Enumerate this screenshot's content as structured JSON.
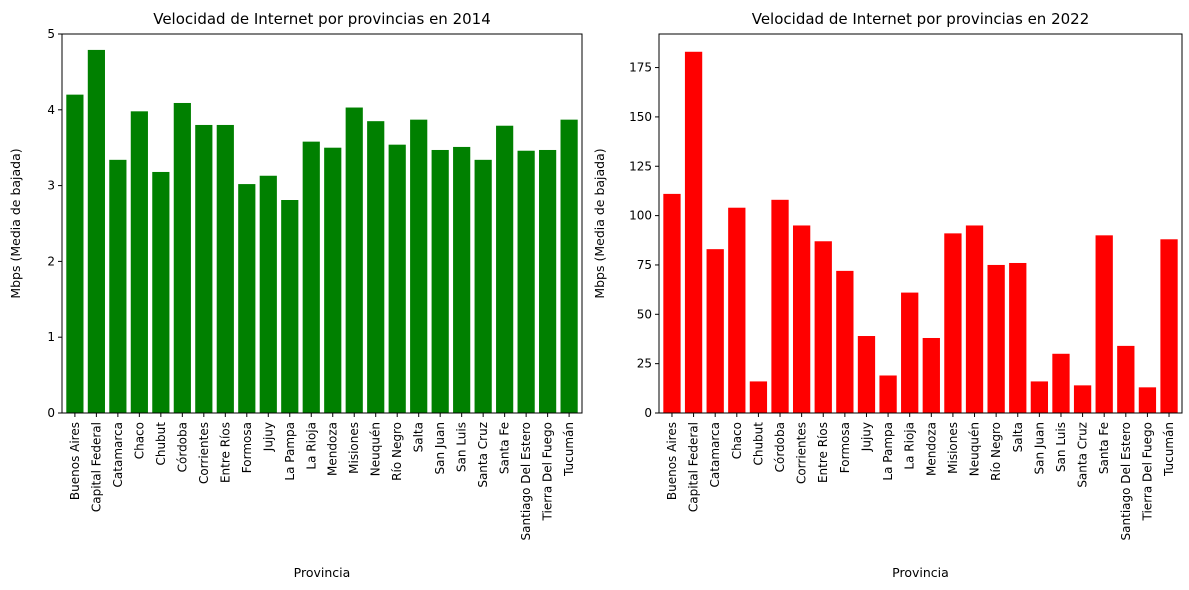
{
  "chart_data": [
    {
      "type": "bar",
      "title": "Velocidad de Internet por provincias en 2014",
      "xlabel": "Provincia",
      "ylabel": "Mbps (Media de bajada)",
      "ylim": [
        0,
        5
      ],
      "yticks": [
        0,
        1,
        2,
        3,
        4,
        5
      ],
      "color": "#008000",
      "grid": false,
      "categories": [
        "Buenos Aires",
        "Capital Federal",
        "Catamarca",
        "Chaco",
        "Chubut",
        "Córdoba",
        "Corrientes",
        "Entre Ríos",
        "Formosa",
        "Jujuy",
        "La Pampa",
        "La Rioja",
        "Mendoza",
        "Misiones",
        "Neuquén",
        "Río Negro",
        "Salta",
        "San Juan",
        "San Luis",
        "Santa Cruz",
        "Santa Fe",
        "Santiago Del Estero",
        "Tierra Del Fuego",
        "Tucumán"
      ],
      "values": [
        4.2,
        4.79,
        3.34,
        3.98,
        3.18,
        4.09,
        3.8,
        3.8,
        3.02,
        3.13,
        2.81,
        3.58,
        3.5,
        4.03,
        3.85,
        3.54,
        3.87,
        3.47,
        3.51,
        3.34,
        3.79,
        3.46,
        3.47,
        3.87
      ]
    },
    {
      "type": "bar",
      "title": "Velocidad de Internet por provincias en 2022",
      "xlabel": "Provincia",
      "ylabel": "Mbps (Media de bajada)",
      "ylim": [
        0,
        192
      ],
      "yticks": [
        0,
        25,
        50,
        75,
        100,
        125,
        150,
        175
      ],
      "color": "#ff0000",
      "grid": false,
      "categories": [
        "Buenos Aires",
        "Capital Federal",
        "Catamarca",
        "Chaco",
        "Chubut",
        "Córdoba",
        "Corrientes",
        "Entre Ríos",
        "Formosa",
        "Jujuy",
        "La Pampa",
        "La Rioja",
        "Mendoza",
        "Misiones",
        "Neuquén",
        "Río Negro",
        "Salta",
        "San Juan",
        "San Luis",
        "Santa Cruz",
        "Santa Fe",
        "Santiago Del Estero",
        "Tierra Del Fuego",
        "Tucumán"
      ],
      "values": [
        111,
        183,
        83,
        104,
        16,
        108,
        95,
        87,
        72,
        39,
        19,
        61,
        38,
        91,
        95,
        75,
        76,
        16,
        30,
        14,
        90,
        34,
        13,
        88
      ]
    }
  ]
}
